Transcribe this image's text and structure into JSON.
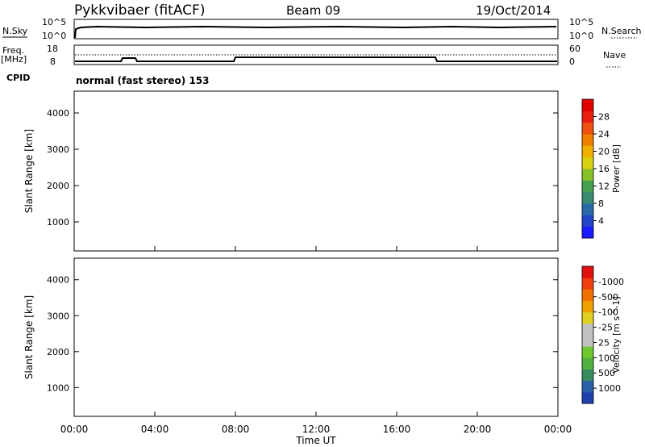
{
  "header": {
    "title": "Pykkvibaer (fitACF)",
    "beam": "Beam 09",
    "date": "19/Oct/2014"
  },
  "nsky_panel": {
    "left_label": "N.Sky",
    "left_ticks": [
      "10^5",
      "10^0"
    ],
    "right_ticks": [
      "10^5",
      "10^0"
    ],
    "right_label": "N.Search"
  },
  "freq_panel": {
    "left_label_1": "Freq.",
    "left_label_2": "[MHz]",
    "left_ticks": [
      "18",
      "8"
    ],
    "right_ticks": [
      "60",
      "0"
    ],
    "right_label": "Nave"
  },
  "cpid_panel": {
    "label": "CPID",
    "text": "normal (fast stereo) 153"
  },
  "chart_data": [
    {
      "type": "heatmap",
      "ylabel": "Slant Range [km]",
      "yticks": [
        1000,
        2000,
        3000,
        4000
      ],
      "ylim": [
        200,
        4600
      ],
      "colorbar": {
        "label": "Power [dB]",
        "ticks": [
          "4",
          "8",
          "12",
          "16",
          "20",
          "24",
          "28"
        ],
        "colors": [
          "#1a1aff",
          "#2244c8",
          "#2a6aa8",
          "#3a8a70",
          "#44a050",
          "#88c028",
          "#d8d010",
          "#f0b000",
          "#f08000",
          "#f05010",
          "#e82010",
          "#e00000"
        ]
      }
    },
    {
      "type": "heatmap",
      "ylabel": "Slant Range [km]",
      "yticks": [
        1000,
        2000,
        3000,
        4000
      ],
      "ylim": [
        200,
        4600
      ],
      "colorbar": {
        "label": "Velocity [m s^-1]",
        "ticks": [
          "1000",
          "500",
          "100",
          "25",
          "-25",
          "-100",
          "-500",
          "-1000"
        ],
        "colors": [
          "#2040b0",
          "#2a60a8",
          "#3a8a60",
          "#50b040",
          "#70c830",
          "#c0c0c0",
          "#c0c0c0",
          "#e0d020",
          "#f0a000",
          "#f07000",
          "#f04010",
          "#e01010"
        ]
      }
    }
  ],
  "xaxis": {
    "ticks": [
      "00:00",
      "04:00",
      "08:00",
      "12:00",
      "16:00",
      "20:00",
      "00:00"
    ],
    "label": "Time UT"
  }
}
